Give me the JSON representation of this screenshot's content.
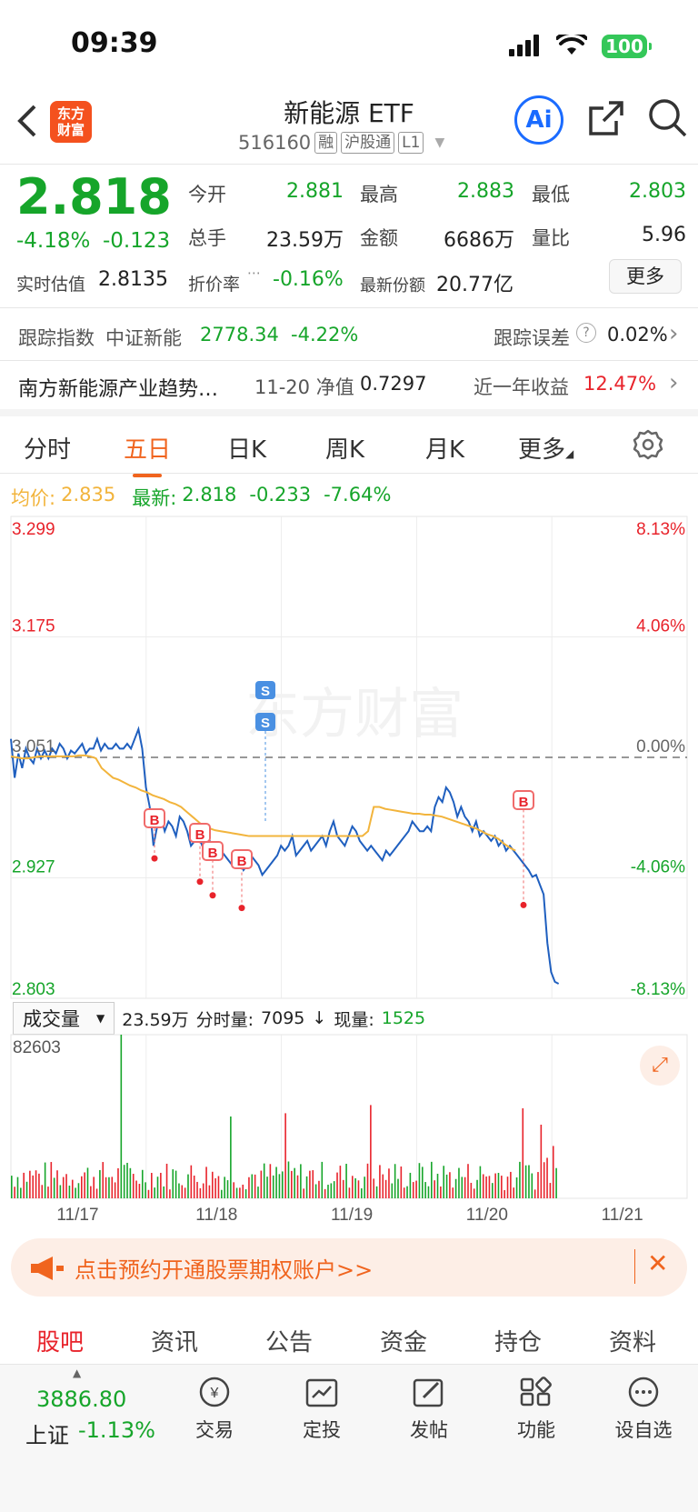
{
  "status_bar": {
    "time": "09:39",
    "battery": "100"
  },
  "header": {
    "logo_text": "东方\n财富",
    "title": "新能源 ETF",
    "code": "516160",
    "tags": [
      "融",
      "沪股通",
      "L1"
    ],
    "ai_label": "Ai"
  },
  "quote": {
    "price": "2.818",
    "change_pct": "-4.18%",
    "change": "-0.123",
    "open_label": "今开",
    "open": "2.881",
    "high_label": "最高",
    "high": "2.883",
    "low_label": "最低",
    "low": "2.803",
    "volume_label": "总手",
    "volume": "23.59万",
    "amount_label": "金额",
    "amount": "6686万",
    "ratio_label": "量比",
    "ratio": "5.96",
    "iopv_label": "实时估值",
    "iopv": "2.8135",
    "premium_label": "折价率",
    "premium": "-0.16%",
    "shares_label": "最新份额",
    "shares": "20.77亿",
    "more_label": "更多"
  },
  "tracking": {
    "label": "跟踪指数",
    "index_name": "中证新能",
    "index_value": "2778.34",
    "index_change": "-4.22%",
    "error_label": "跟踪误差",
    "error_value": "0.02%"
  },
  "fund": {
    "name": "南方新能源产业趋势…",
    "nav_label": "11-20 净值",
    "nav": "0.7297",
    "return_label": "近一年收益",
    "return_value": "12.47%"
  },
  "chart_tabs": [
    "分时",
    "五日",
    "日K",
    "周K",
    "月K",
    "更多"
  ],
  "active_tab": "五日",
  "info_line": {
    "avg_label": "均价:",
    "avg": "2.835",
    "latest_label": "最新:",
    "latest": "2.818",
    "chg": "-0.233",
    "chg_pct": "-7.64%"
  },
  "watermark": "东方财富",
  "volume_info": {
    "selector": "成交量",
    "total": "23.59万",
    "tick_label": "分时量:",
    "tick": "7095",
    "now_label": "现量:",
    "now": "1525",
    "max": "82603"
  },
  "banner": {
    "text": "点击预约开通股票期权账户>>"
  },
  "bottom_tabs": [
    "股吧",
    "资讯",
    "公告",
    "资金",
    "持仓",
    "资料"
  ],
  "dock": {
    "index_value": "3886.80",
    "index_name": "上证",
    "index_change": "-1.13%",
    "items": [
      "交易",
      "定投",
      "发帖",
      "功能",
      "设自选"
    ]
  },
  "colors": {
    "up": "#e8232b",
    "down": "#16a52a",
    "accent": "#f0641e",
    "price_line": "#1f5fbf",
    "avg_line": "#f2b43c"
  },
  "chart_data": {
    "type": "line",
    "title": "",
    "days": [
      "11/17",
      "11/18",
      "11/19",
      "11/20",
      "11/21"
    ],
    "y_ticks": [
      "3.299",
      "3.175",
      "3.051",
      "2.927",
      "2.803"
    ],
    "pct_ticks": [
      "8.13%",
      "4.06%",
      "0.00%",
      "-4.06%",
      "-8.13%"
    ],
    "ylim": [
      2.803,
      3.299
    ],
    "prev_close": 3.051,
    "price_series": [
      3.07,
      3.03,
      3.055,
      3.04,
      3.06,
      3.05,
      3.045,
      3.06,
      3.05,
      3.058,
      3.05,
      3.06,
      3.055,
      3.065,
      3.06,
      3.05,
      3.058,
      3.055,
      3.06,
      3.065,
      3.055,
      3.06,
      3.06,
      3.07,
      3.058,
      3.065,
      3.06,
      3.06,
      3.065,
      3.06,
      3.06,
      3.065,
      3.06,
      3.07,
      3.08,
      3.06,
      3.02,
      3.0,
      2.96,
      2.98,
      2.99,
      2.975,
      2.985,
      2.98,
      2.97,
      2.99,
      2.985,
      2.975,
      2.96,
      2.965,
      2.97,
      2.96,
      2.955,
      2.965,
      2.95,
      2.96,
      2.955,
      2.95,
      2.945,
      2.94,
      2.95,
      2.945,
      2.935,
      2.94,
      2.95,
      2.945,
      2.94,
      2.93,
      2.935,
      2.94,
      2.945,
      2.95,
      2.96,
      2.955,
      2.96,
      2.97,
      2.95,
      2.955,
      2.96,
      2.965,
      2.955,
      2.96,
      2.965,
      2.97,
      2.96,
      2.975,
      2.985,
      2.97,
      2.965,
      2.96,
      2.97,
      2.98,
      2.975,
      2.965,
      2.96,
      2.955,
      2.96,
      2.955,
      2.95,
      2.945,
      2.955,
      2.95,
      2.955,
      2.96,
      2.965,
      2.97,
      2.975,
      2.985,
      2.98,
      2.975,
      2.975,
      2.98,
      2.975,
      3.0,
      3.01,
      3.005,
      3.02,
      3.015,
      3.005,
      2.99,
      3.0,
      2.99,
      2.985,
      2.975,
      2.985,
      2.97,
      2.975,
      2.97,
      2.965,
      2.97,
      2.96,
      2.965,
      2.955,
      2.96,
      2.955,
      2.95,
      2.945,
      2.94,
      2.935,
      2.928,
      2.93,
      2.92,
      2.91,
      2.86,
      2.83,
      2.82,
      2.818
    ],
    "avg_series": [
      3.052,
      3.051,
      3.05,
      3.05,
      3.051,
      3.052,
      3.052,
      3.052,
      3.052,
      3.052,
      3.052,
      3.052,
      3.053,
      3.053,
      3.052,
      3.05,
      3.04,
      3.035,
      3.03,
      3.028,
      3.025,
      3.022,
      3.02,
      3.017,
      3.015,
      3.012,
      3.01,
      3.008,
      3.005,
      3.003,
      3.0,
      2.995,
      2.99,
      2.985,
      2.98,
      2.978,
      2.976,
      2.975,
      2.974,
      2.973,
      2.972,
      2.971,
      2.97,
      2.97,
      2.97,
      2.97,
      2.97,
      2.97,
      2.97,
      2.97,
      2.97,
      2.97,
      2.97,
      2.97,
      2.97,
      2.97,
      2.97,
      2.97,
      2.97,
      2.97,
      2.97,
      2.97,
      2.97,
      2.975,
      3.0,
      3.0,
      2.998,
      2.997,
      2.996,
      2.995,
      2.994,
      2.993,
      2.993,
      2.992,
      2.992,
      2.991,
      2.99,
      2.988,
      2.986,
      2.984,
      2.982,
      2.98,
      2.978,
      2.975,
      2.972,
      2.97,
      2.967,
      2.962,
      2.958,
      2.955
    ],
    "buy_marks": [
      2.947,
      2.923,
      2.909,
      2.896,
      2.899
    ],
    "sell_marks": [
      2.985,
      2.985
    ],
    "volume_max": 82603
  }
}
